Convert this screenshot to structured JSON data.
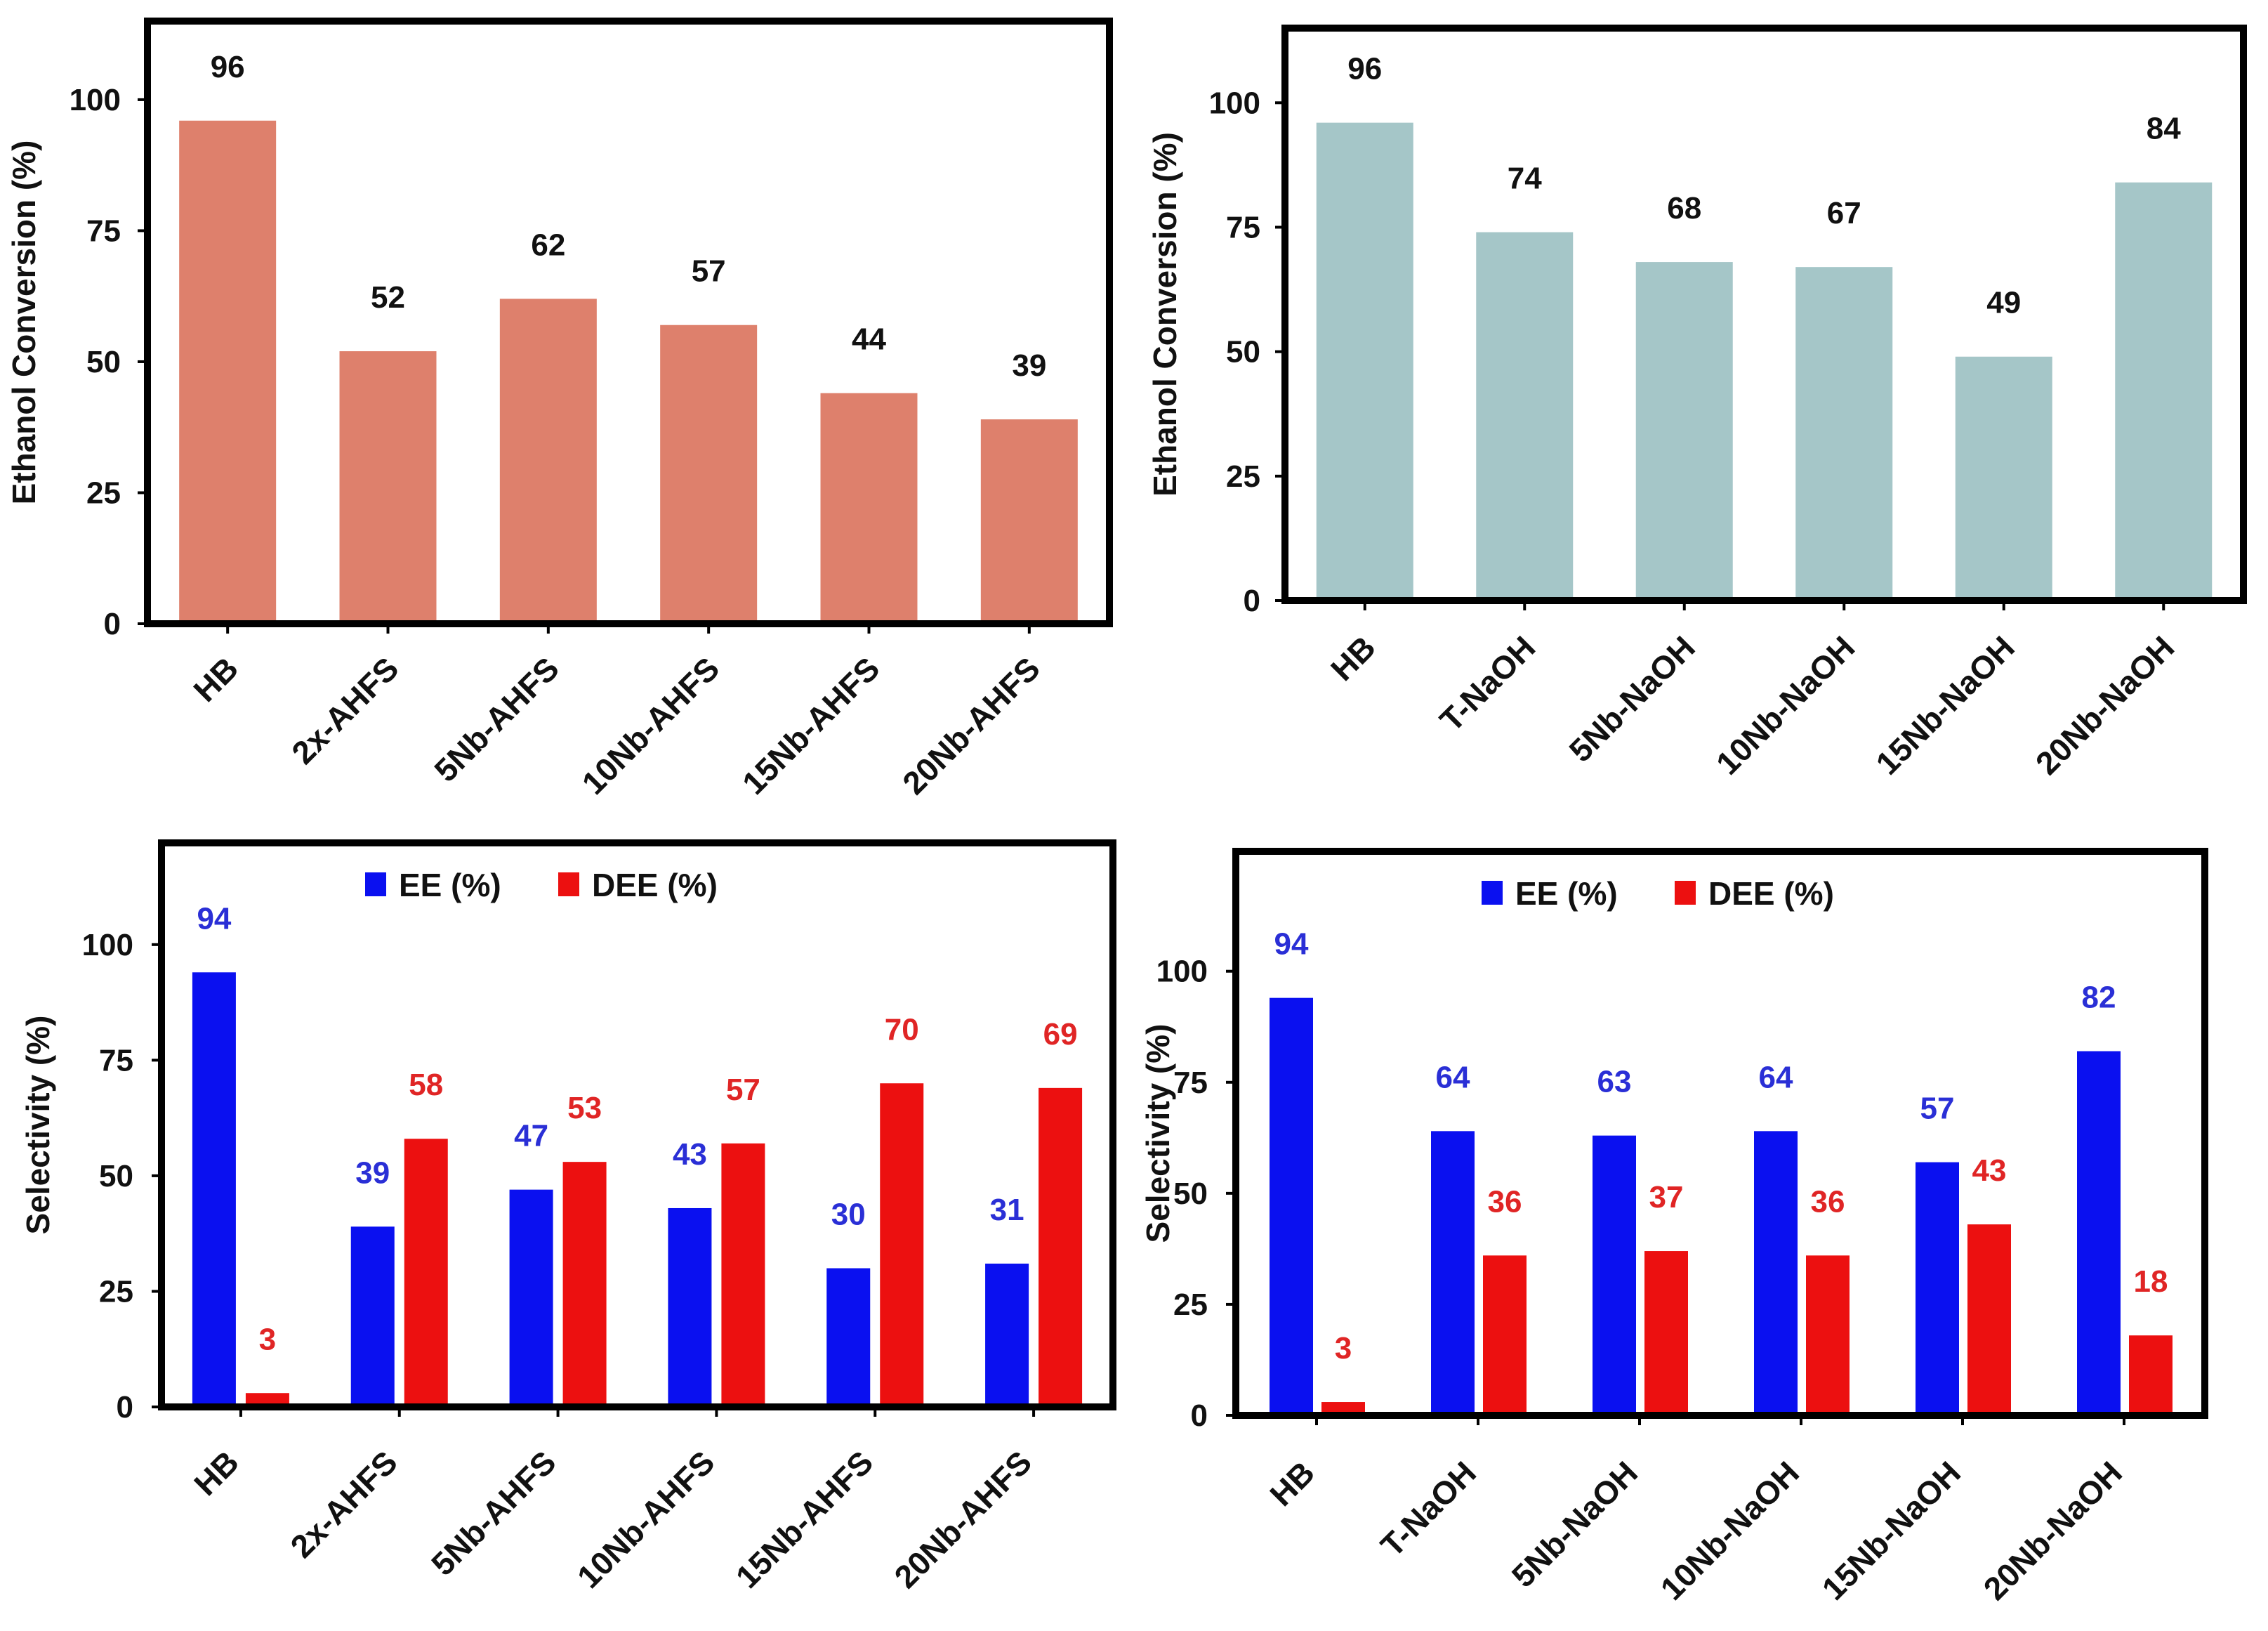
{
  "chart_data": [
    {
      "type": "bar",
      "title": "",
      "xlabel": "",
      "ylabel": "Ethanol Conversion (%)",
      "ylim": [
        0,
        115
      ],
      "yticks": [
        0,
        25,
        50,
        75,
        100
      ],
      "categories": [
        "HB",
        "2x-AHFS",
        "5Nb-AHFS",
        "10Nb-AHFS",
        "15Nb-AHFS",
        "20Nb-AHFS"
      ],
      "series": [
        {
          "values": [
            96,
            52,
            62,
            57,
            44,
            39
          ],
          "labels": [
            "96",
            "52",
            "62",
            "57",
            "44",
            "39"
          ],
          "color": "#de806c"
        }
      ],
      "legend": null
    },
    {
      "type": "bar",
      "title": "",
      "xlabel": "",
      "ylabel": "Ethanol Conversion (%)",
      "ylim": [
        0,
        115
      ],
      "yticks": [
        0,
        25,
        50,
        75,
        100
      ],
      "categories": [
        "HB",
        "T-NaOH",
        "5Nb-NaOH",
        "10Nb-NaOH",
        "15Nb-NaOH",
        "20Nb-NaOH"
      ],
      "series": [
        {
          "values": [
            96,
            74,
            68,
            67,
            49,
            84
          ],
          "labels": [
            "96",
            "74",
            "68",
            "67",
            "49",
            "84"
          ],
          "color": "#a5c6c8"
        }
      ],
      "legend": null
    },
    {
      "type": "bar",
      "title": "",
      "xlabel": "",
      "ylabel": "Selectivity (%)",
      "ylim": [
        0,
        122
      ],
      "yticks": [
        0,
        25,
        50,
        75,
        100
      ],
      "categories": [
        "HB",
        "2x-AHFS",
        "5Nb-AHFS",
        "10Nb-AHFS",
        "15Nb-AHFS",
        "20Nb-AHFS"
      ],
      "series": [
        {
          "name": "EE (%)",
          "values": [
            94,
            39,
            47,
            43,
            30,
            31
          ],
          "labels": [
            "94",
            "39",
            "47",
            "43",
            "30",
            "31"
          ],
          "color": "#0a10f0",
          "label_color": "#2a2fd6"
        },
        {
          "name": "DEE (%)",
          "values": [
            3,
            58,
            53,
            57,
            70,
            69
          ],
          "labels": [
            "3",
            "58",
            "53",
            "57",
            "70",
            "69"
          ],
          "color": "#ec1010",
          "label_color": "#e02525"
        }
      ],
      "legend": "top-center"
    },
    {
      "type": "bar",
      "title": "",
      "xlabel": "",
      "ylabel": "Selectivity (%)",
      "ylim": [
        0,
        127
      ],
      "yticks": [
        0,
        25,
        50,
        75,
        100
      ],
      "categories": [
        "HB",
        "T-NaOH",
        "5Nb-NaOH",
        "10Nb-NaOH",
        "15Nb-NaOH",
        "20Nb-NaOH"
      ],
      "series": [
        {
          "name": "EE (%)",
          "values": [
            94,
            64,
            63,
            64,
            57,
            82
          ],
          "labels": [
            "94",
            "64",
            "63",
            "64",
            "57",
            "82"
          ],
          "color": "#0a10f0",
          "label_color": "#2a2fd6"
        },
        {
          "name": "DEE (%)",
          "values": [
            3,
            36,
            37,
            36,
            43,
            18
          ],
          "labels": [
            "3",
            "36",
            "37",
            "36",
            "43",
            "18"
          ],
          "color": "#ec1010",
          "label_color": "#e02525"
        }
      ],
      "legend": "top-center"
    }
  ]
}
